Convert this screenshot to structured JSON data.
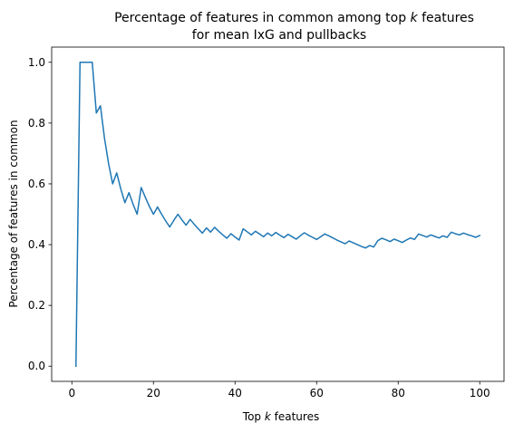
{
  "chart_data": {
    "type": "line",
    "title_line1": "Percentage of features in common among top ",
    "title_var": "k",
    "title_line1_end": " features",
    "title_line2": "for mean IxG and pullbacks",
    "xlabel_prefix": "Top ",
    "xlabel_var": "k",
    "xlabel_suffix": " features",
    "ylabel": "Percentage of features in common",
    "xlim": [
      -4.95,
      105.95
    ],
    "ylim": [
      -0.05,
      1.05
    ],
    "xticks": [
      0,
      20,
      40,
      60,
      80,
      100
    ],
    "xtick_labels": [
      "0",
      "20",
      "40",
      "60",
      "80",
      "100"
    ],
    "yticks": [
      0.0,
      0.2,
      0.4,
      0.6,
      0.8,
      1.0
    ],
    "ytick_labels": [
      "0.0",
      "0.2",
      "0.4",
      "0.6",
      "0.8",
      "1.0"
    ],
    "grid": false,
    "series": [
      {
        "color": "#1f77b4",
        "x": [
          1,
          2,
          3,
          4,
          5,
          6,
          7,
          8,
          9,
          10,
          11,
          12,
          13,
          14,
          15,
          16,
          17,
          18,
          19,
          20,
          21,
          22,
          23,
          24,
          25,
          26,
          27,
          28,
          29,
          30,
          31,
          32,
          33,
          34,
          35,
          36,
          37,
          38,
          39,
          40,
          41,
          42,
          43,
          44,
          45,
          46,
          47,
          48,
          49,
          50,
          51,
          52,
          53,
          54,
          55,
          56,
          57,
          58,
          59,
          60,
          61,
          62,
          63,
          64,
          65,
          66,
          67,
          68,
          69,
          70,
          71,
          72,
          73,
          74,
          75,
          76,
          77,
          78,
          79,
          80,
          81,
          82,
          83,
          84,
          85,
          86,
          87,
          88,
          89,
          90,
          91,
          92,
          93,
          94,
          95,
          96,
          97,
          98,
          99,
          100
        ],
        "y": [
          0.0,
          1.0,
          1.0,
          1.0,
          1.0,
          0.833,
          0.857,
          0.75,
          0.667,
          0.6,
          0.636,
          0.583,
          0.538,
          0.571,
          0.533,
          0.5,
          0.588,
          0.556,
          0.526,
          0.5,
          0.524,
          0.5,
          0.478,
          0.458,
          0.48,
          0.5,
          0.481,
          0.464,
          0.483,
          0.467,
          0.452,
          0.438,
          0.455,
          0.441,
          0.457,
          0.444,
          0.432,
          0.421,
          0.436,
          0.425,
          0.415,
          0.452,
          0.442,
          0.432,
          0.444,
          0.435,
          0.426,
          0.438,
          0.429,
          0.44,
          0.431,
          0.423,
          0.434,
          0.426,
          0.418,
          0.429,
          0.439,
          0.431,
          0.424,
          0.417,
          0.426,
          0.435,
          0.429,
          0.422,
          0.415,
          0.409,
          0.403,
          0.412,
          0.406,
          0.4,
          0.394,
          0.389,
          0.397,
          0.392,
          0.413,
          0.421,
          0.416,
          0.41,
          0.418,
          0.413,
          0.407,
          0.415,
          0.422,
          0.417,
          0.435,
          0.43,
          0.425,
          0.432,
          0.427,
          0.422,
          0.429,
          0.424,
          0.441,
          0.436,
          0.432,
          0.438,
          0.433,
          0.429,
          0.424,
          0.43
        ]
      }
    ]
  }
}
